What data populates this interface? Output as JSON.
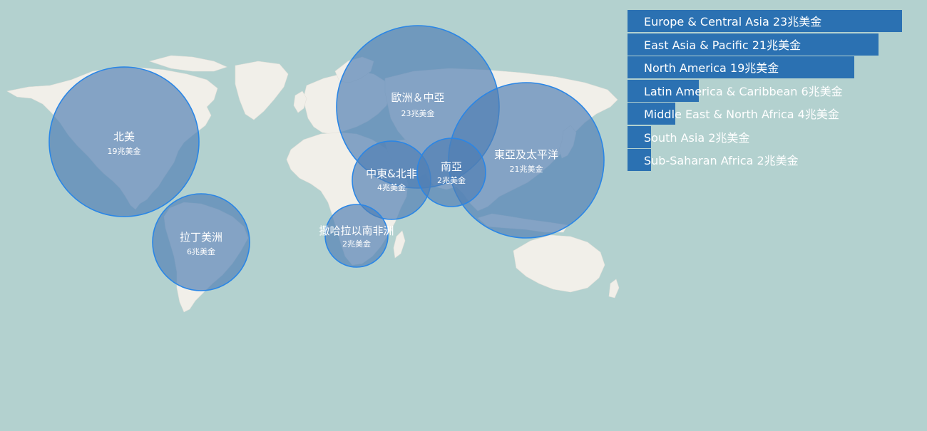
{
  "map": {
    "colors": {
      "ocean": "#b3d1cf",
      "land": "#f1efe9",
      "bubble_fill": "#4f7fb4",
      "bubble_stroke": "#2a86e6",
      "legend_bar": "#2b71b2"
    },
    "bubbles": [
      {
        "id": "north-america",
        "name": "北美",
        "value_label": "19兆美金",
        "value": 19
      },
      {
        "id": "latin-america",
        "name": "拉丁美洲",
        "value_label": "6兆美金",
        "value": 6
      },
      {
        "id": "europe-central-asia",
        "name": "歐洲＆中亞",
        "value_label": "23兆美金",
        "value": 23
      },
      {
        "id": "east-asia-pacific",
        "name": "東亞及太平洋",
        "value_label": "21兆美金",
        "value": 21
      },
      {
        "id": "middle-east-north-africa",
        "name": "中東&北非",
        "value_label": "4兆美金",
        "value": 4
      },
      {
        "id": "south-asia",
        "name": "南亞",
        "value_label": "2兆美金",
        "value": 2
      },
      {
        "id": "sub-saharan-africa",
        "name": "撒哈拉以南非洲",
        "value_label": "2兆美金",
        "value": 2
      }
    ]
  },
  "legend": {
    "max_value": 23,
    "items": [
      {
        "label": "Europe & Central Asia 23兆美金",
        "value": 23
      },
      {
        "label": "East Asia & Pacific 21兆美金",
        "value": 21
      },
      {
        "label": "North America 19兆美金",
        "value": 19
      },
      {
        "label": "Latin America & Caribbean 6兆美金",
        "value": 6
      },
      {
        "label": "Middle East & North Africa 4兆美金",
        "value": 4
      },
      {
        "label": "South Asia 2兆美金",
        "value": 2
      },
      {
        "label": "Sub-Saharan Africa 2兆美金",
        "value": 2
      }
    ]
  }
}
